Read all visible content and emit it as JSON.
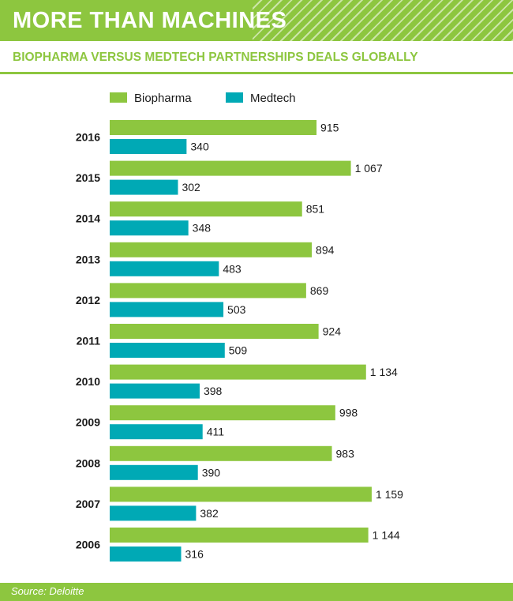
{
  "header": {
    "title": "MORE THAN MACHINES"
  },
  "subtitle": "BIOPHARMA VERSUS MEDTECH PARTNERSHIPS DEALS GLOBALLY",
  "footer": {
    "source": "Source: Deloitte"
  },
  "colors": {
    "biopharma": "#8dc63f",
    "medtech": "#00a9b5",
    "text": "#1a1a1a"
  },
  "chart_data": {
    "type": "bar",
    "orientation": "horizontal",
    "categories": [
      "2016",
      "2015",
      "2014",
      "2013",
      "2012",
      "2011",
      "2010",
      "2009",
      "2008",
      "2007",
      "2006"
    ],
    "series": [
      {
        "name": "Biopharma",
        "values": [
          915,
          1067,
          851,
          894,
          869,
          924,
          1134,
          998,
          983,
          1159,
          1144
        ],
        "labels": [
          "915",
          "1 067",
          "851",
          "894",
          "869",
          "924",
          "1 134",
          "998",
          "983",
          "1 159",
          "1 144"
        ]
      },
      {
        "name": "Medtech",
        "values": [
          340,
          302,
          348,
          483,
          503,
          509,
          398,
          411,
          390,
          382,
          316
        ],
        "labels": [
          "340",
          "302",
          "348",
          "483",
          "503",
          "509",
          "398",
          "411",
          "390",
          "382",
          "316"
        ]
      }
    ],
    "legend_position": "top-left",
    "grid": false
  }
}
